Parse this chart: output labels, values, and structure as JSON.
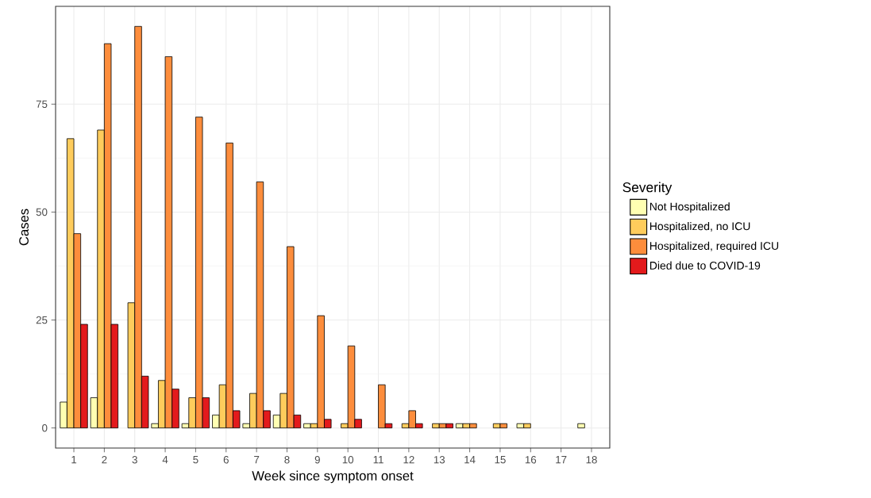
{
  "chart_data": {
    "type": "bar",
    "xlabel": "Week since symptom onset",
    "ylabel": "Cases",
    "legend_title": "Severity",
    "categories": [
      "1",
      "2",
      "3",
      "4",
      "5",
      "6",
      "7",
      "8",
      "9",
      "10",
      "11",
      "12",
      "13",
      "14",
      "15",
      "16",
      "17",
      "18"
    ],
    "series": [
      {
        "name": "Not Hospitalized",
        "color": "#ffffb2",
        "values": [
          6,
          7,
          null,
          1,
          1,
          3,
          1,
          3,
          1,
          null,
          null,
          null,
          null,
          1,
          null,
          1,
          null,
          1
        ]
      },
      {
        "name": "Hospitalized, no ICU",
        "color": "#fecc5c",
        "values": [
          67,
          69,
          29,
          11,
          7,
          10,
          8,
          8,
          1,
          1,
          null,
          1,
          1,
          1,
          1,
          1,
          null,
          null
        ]
      },
      {
        "name": "Hospitalized, required ICU",
        "color": "#fd8d3c",
        "values": [
          45,
          89,
          93,
          86,
          72,
          66,
          57,
          42,
          26,
          19,
          10,
          4,
          1,
          1,
          1,
          null,
          null,
          null
        ]
      },
      {
        "name": "Died due to COVID-19",
        "color": "#e31a1c",
        "values": [
          24,
          24,
          12,
          9,
          7,
          4,
          4,
          3,
          2,
          2,
          1,
          1,
          1,
          null,
          null,
          null,
          null,
          null
        ]
      }
    ],
    "ylim": [
      -4.65,
      97.65
    ],
    "yticks": [
      0,
      25,
      50,
      75
    ],
    "grid": true,
    "legend": "right"
  }
}
